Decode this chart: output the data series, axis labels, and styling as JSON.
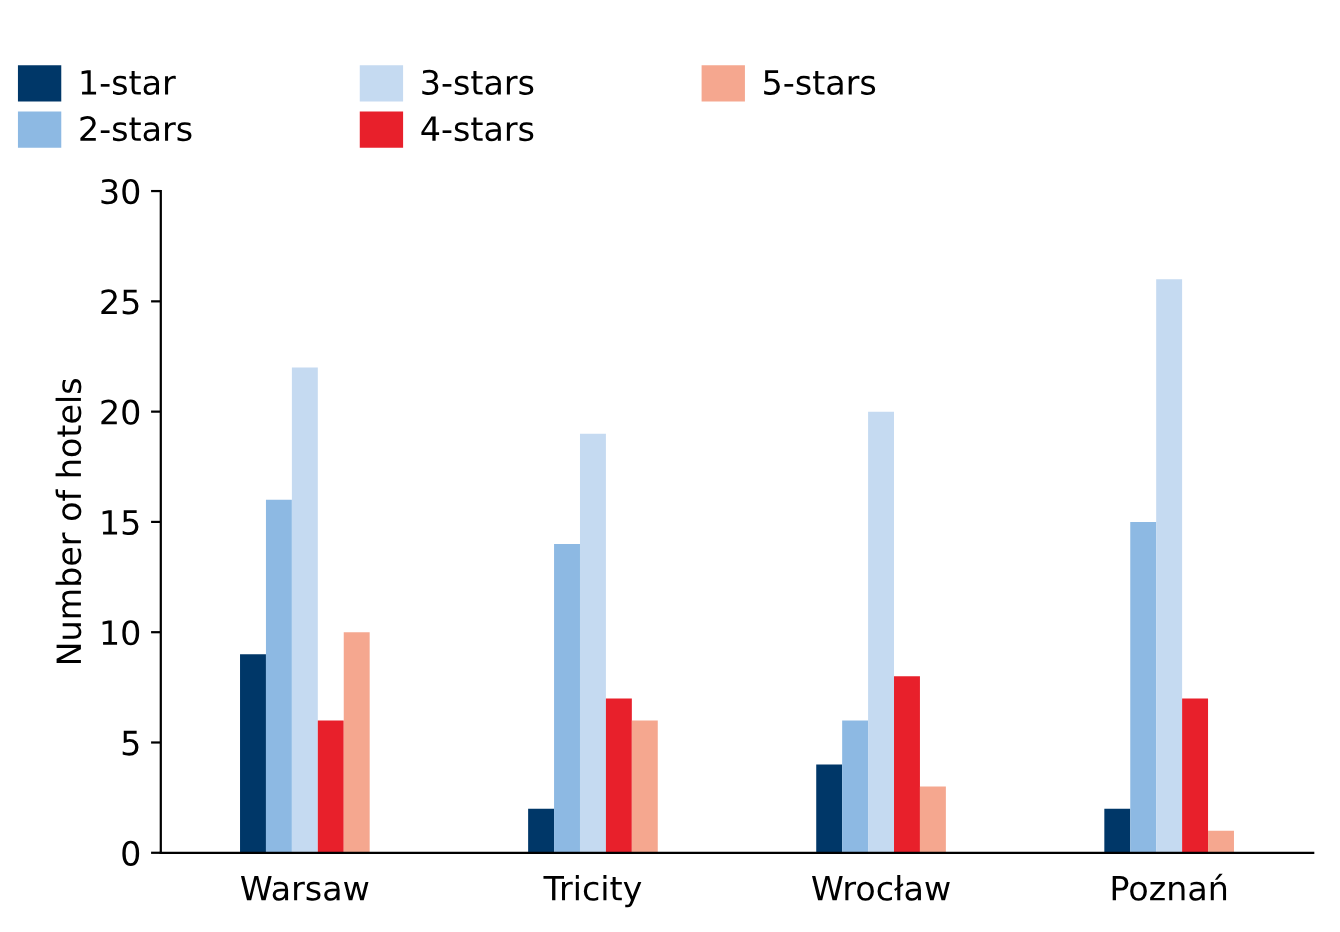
{
  "chart_data": {
    "type": "bar",
    "ylabel": "Number of hotels",
    "categories": [
      "Warsaw",
      "Tricity",
      "Wrocław",
      "Poznań"
    ],
    "series": [
      {
        "name": "1-star",
        "color": "#003768",
        "values": [
          9,
          2,
          4,
          2
        ]
      },
      {
        "name": "2-stars",
        "color": "#8db9e3",
        "values": [
          16,
          14,
          6,
          15
        ]
      },
      {
        "name": "3-stars",
        "color": "#c5daf1",
        "values": [
          22,
          19,
          20,
          26
        ]
      },
      {
        "name": "4-stars",
        "color": "#e8202b",
        "values": [
          6,
          7,
          8,
          7
        ]
      },
      {
        "name": "5-stars",
        "color": "#f5a78f",
        "values": [
          10,
          6,
          3,
          1
        ]
      }
    ],
    "ylim": [
      0,
      30
    ],
    "yticks": [
      0,
      5,
      10,
      15,
      20,
      25,
      30
    ],
    "grid": false,
    "legend": "top"
  }
}
